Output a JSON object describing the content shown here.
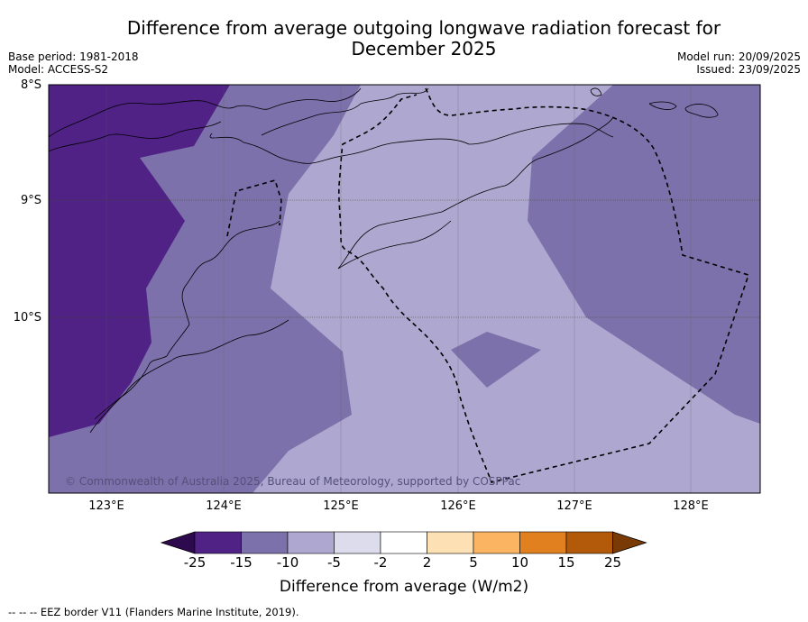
{
  "title_line1": "Difference from average outgoing longwave radiation forecast for",
  "title_line2": "December 2025",
  "base_period": "Base period: 1981-2018",
  "model": "Model: ACCESS-S2",
  "model_run": "Model run: 20/09/2025",
  "issued": "Issued: 23/09/2025",
  "latitudes": [
    "8°S",
    "9°S",
    "10°S"
  ],
  "longitudes": [
    "123°E",
    "124°E",
    "125°E",
    "126°E",
    "127°E",
    "128°E"
  ],
  "copyright": "© Commonwealth of Australia 2025, Bureau of Meteorology, supported by COSPPac",
  "colorbar": {
    "ticks": [
      "-25",
      "-15",
      "-10",
      "-5",
      "-2",
      "2",
      "5",
      "10",
      "15",
      "25"
    ],
    "colors": [
      "#2d0a4e",
      "#512286",
      "#7d71ab",
      "#aea8d0",
      "#dcdcec",
      "#ffffff",
      "#fde0b4",
      "#fbb562",
      "#e0801e",
      "#b25a0a",
      "#7a3a06"
    ],
    "label": "Difference from average (W/m2)"
  },
  "footer": "--  --  -- EEZ border V11 (Flanders Marine Institute, 2019)."
}
